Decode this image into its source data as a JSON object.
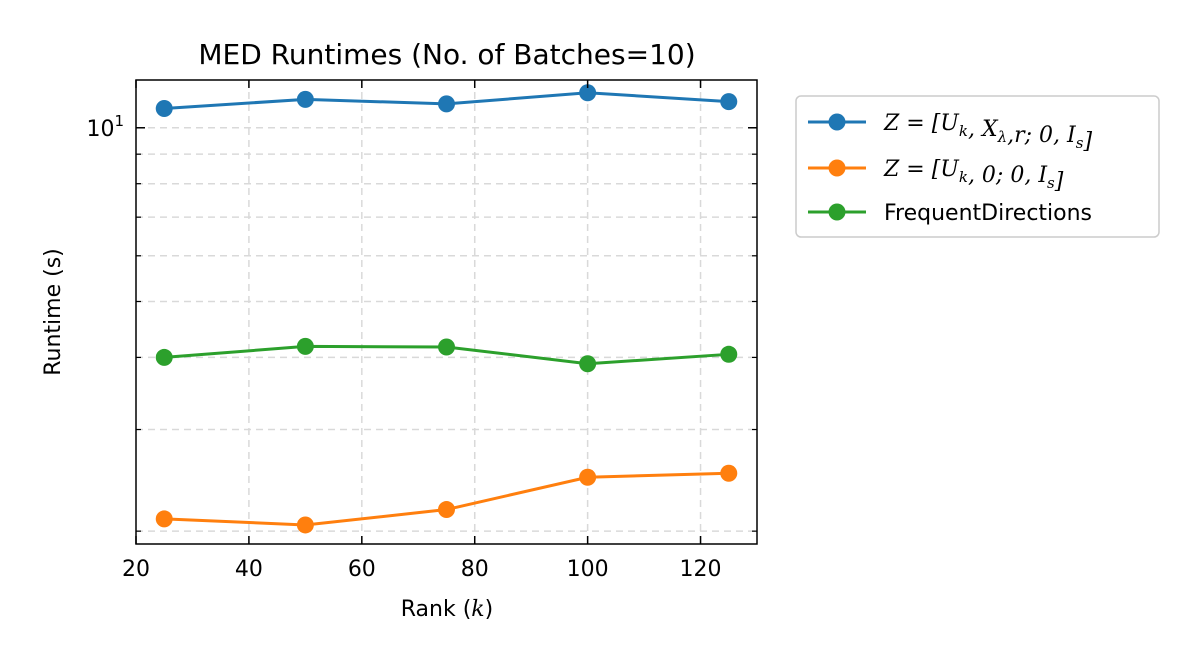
{
  "chart_data": {
    "type": "line",
    "title": "MED Runtimes (No. of Batches=10)",
    "xlabel": "Rank (k)",
    "ylabel": "Runtime (s)",
    "x": [
      25,
      50,
      75,
      100,
      125
    ],
    "xlim": [
      20,
      130
    ],
    "xticks": [
      20,
      40,
      60,
      80,
      100,
      120
    ],
    "yscale": "log",
    "ylim": [
      1.9,
      12.1
    ],
    "yticks": [
      10
    ],
    "ytick_labels": [
      "10^1"
    ],
    "grid": true,
    "legend_position": "outside-upper-right",
    "series": [
      {
        "name": "Z = [U_k, X_λ,r; 0, I_s]",
        "color": "#1f77b4",
        "values": [
          10.8,
          11.2,
          11.0,
          11.5,
          11.1
        ]
      },
      {
        "name": "Z = [U_k, 0; 0, I_s]",
        "color": "#ff7f0e",
        "values": [
          2.1,
          2.05,
          2.18,
          2.48,
          2.52
        ]
      },
      {
        "name": "FrequentDirections",
        "color": "#2ca02c",
        "values": [
          4.0,
          4.18,
          4.17,
          3.9,
          4.05
        ]
      }
    ]
  }
}
